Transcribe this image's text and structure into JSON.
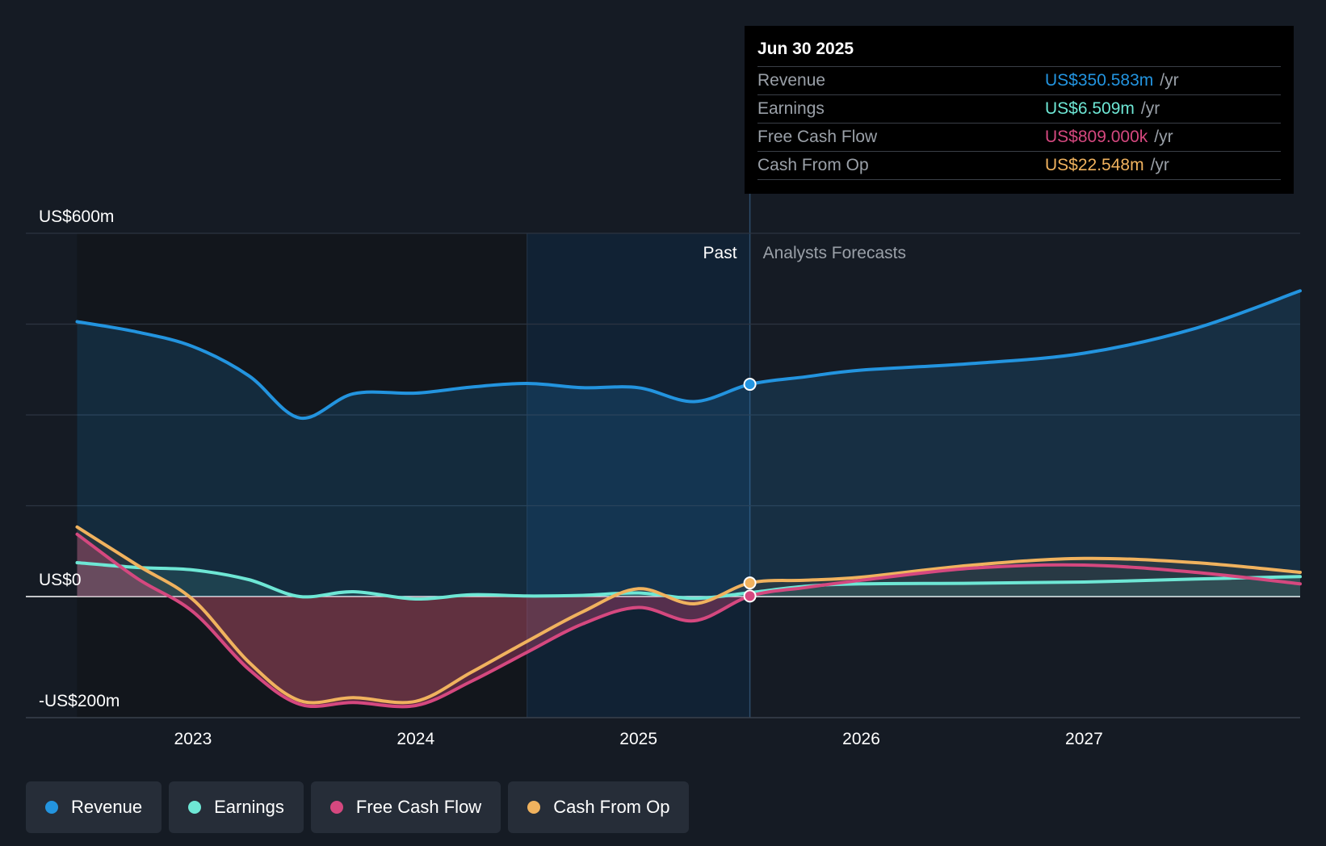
{
  "chart_data": {
    "type": "area",
    "y_axis": {
      "min": -200,
      "max": 600,
      "tick_labels": [
        "US$600m",
        "US$0",
        "-US$200m"
      ],
      "tick_values": [
        600,
        0,
        -200
      ]
    },
    "x_axis": {
      "min": 2022.25,
      "max": 2027.97,
      "tick_labels": [
        "2023",
        "2024",
        "2025",
        "2026",
        "2027"
      ],
      "tick_values": [
        2023,
        2024,
        2025,
        2026,
        2027
      ]
    },
    "regions": {
      "past_label": "Past",
      "forecast_label": "Analysts Forecasts",
      "divider_x": 2025.5,
      "highlight_start_x": 2024.5
    },
    "series": [
      {
        "name": "Revenue",
        "color": "#2394df",
        "points": [
          [
            2022.48,
            454
          ],
          [
            2022.75,
            437
          ],
          [
            2023.0,
            413
          ],
          [
            2023.25,
            365
          ],
          [
            2023.48,
            295
          ],
          [
            2023.72,
            335
          ],
          [
            2024.0,
            336
          ],
          [
            2024.25,
            346
          ],
          [
            2024.5,
            352
          ],
          [
            2024.75,
            345
          ],
          [
            2025.0,
            345
          ],
          [
            2025.25,
            322
          ],
          [
            2025.5,
            350.6
          ]
        ],
        "forecast": [
          [
            2025.5,
            350.6
          ],
          [
            2025.75,
            363
          ],
          [
            2026.0,
            374
          ],
          [
            2026.5,
            385
          ],
          [
            2027.0,
            402
          ],
          [
            2027.5,
            443
          ],
          [
            2027.97,
            505
          ]
        ]
      },
      {
        "name": "Earnings",
        "color": "#6ee7d5",
        "points": [
          [
            2022.48,
            56
          ],
          [
            2022.75,
            48
          ],
          [
            2023.0,
            44
          ],
          [
            2023.25,
            28
          ],
          [
            2023.48,
            0
          ],
          [
            2023.72,
            8
          ],
          [
            2024.0,
            -4
          ],
          [
            2024.25,
            3
          ],
          [
            2024.5,
            1
          ],
          [
            2024.75,
            2
          ],
          [
            2025.0,
            6
          ],
          [
            2025.25,
            -3
          ],
          [
            2025.5,
            6.5
          ]
        ],
        "forecast": [
          [
            2025.5,
            6.5
          ],
          [
            2025.75,
            17
          ],
          [
            2026.0,
            21
          ],
          [
            2026.5,
            22
          ],
          [
            2027.0,
            24
          ],
          [
            2027.5,
            29
          ],
          [
            2027.97,
            33
          ]
        ]
      },
      {
        "name": "Free Cash Flow",
        "color": "#d5487f",
        "points": [
          [
            2022.48,
            103
          ],
          [
            2022.75,
            30
          ],
          [
            2023.0,
            -25
          ],
          [
            2023.25,
            -120
          ],
          [
            2023.48,
            -178
          ],
          [
            2023.72,
            -175
          ],
          [
            2024.0,
            -180
          ],
          [
            2024.25,
            -140
          ],
          [
            2024.5,
            -92
          ],
          [
            2024.75,
            -45
          ],
          [
            2025.0,
            -18
          ],
          [
            2025.25,
            -40
          ],
          [
            2025.5,
            0.8
          ]
        ],
        "forecast": [
          [
            2025.5,
            0.8
          ],
          [
            2025.75,
            15
          ],
          [
            2026.0,
            27
          ],
          [
            2026.5,
            47
          ],
          [
            2027.0,
            52
          ],
          [
            2027.5,
            40
          ],
          [
            2027.97,
            21
          ]
        ]
      },
      {
        "name": "Cash From Op",
        "color": "#f0b25e",
        "points": [
          [
            2022.48,
            115
          ],
          [
            2022.75,
            52
          ],
          [
            2023.0,
            -5
          ],
          [
            2023.25,
            -108
          ],
          [
            2023.48,
            -172
          ],
          [
            2023.72,
            -167
          ],
          [
            2024.0,
            -173
          ],
          [
            2024.25,
            -125
          ],
          [
            2024.5,
            -74
          ],
          [
            2024.75,
            -25
          ],
          [
            2025.0,
            13
          ],
          [
            2025.25,
            -12
          ],
          [
            2025.5,
            22.5
          ]
        ],
        "forecast": [
          [
            2025.5,
            22.5
          ],
          [
            2025.75,
            27
          ],
          [
            2026.0,
            32
          ],
          [
            2026.5,
            52
          ],
          [
            2027.0,
            63
          ],
          [
            2027.5,
            56
          ],
          [
            2027.97,
            40
          ]
        ]
      }
    ],
    "grid": true,
    "legend_placement": "bottom-left"
  },
  "tooltip": {
    "date": "Jun 30 2025",
    "rows": [
      {
        "name": "Revenue",
        "value": "US$350.583m",
        "unit": "/yr",
        "color": "#2394df"
      },
      {
        "name": "Earnings",
        "value": "US$6.509m",
        "unit": "/yr",
        "color": "#6ee7d5"
      },
      {
        "name": "Free Cash Flow",
        "value": "US$809.000k",
        "unit": "/yr",
        "color": "#d5487f"
      },
      {
        "name": "Cash From Op",
        "value": "US$22.548m",
        "unit": "/yr",
        "color": "#f0b25e"
      }
    ]
  },
  "legend": [
    {
      "label": "Revenue",
      "color": "#2394df"
    },
    {
      "label": "Earnings",
      "color": "#6ee7d5"
    },
    {
      "label": "Free Cash Flow",
      "color": "#d5487f"
    },
    {
      "label": "Cash From Op",
      "color": "#f0b25e"
    }
  ]
}
